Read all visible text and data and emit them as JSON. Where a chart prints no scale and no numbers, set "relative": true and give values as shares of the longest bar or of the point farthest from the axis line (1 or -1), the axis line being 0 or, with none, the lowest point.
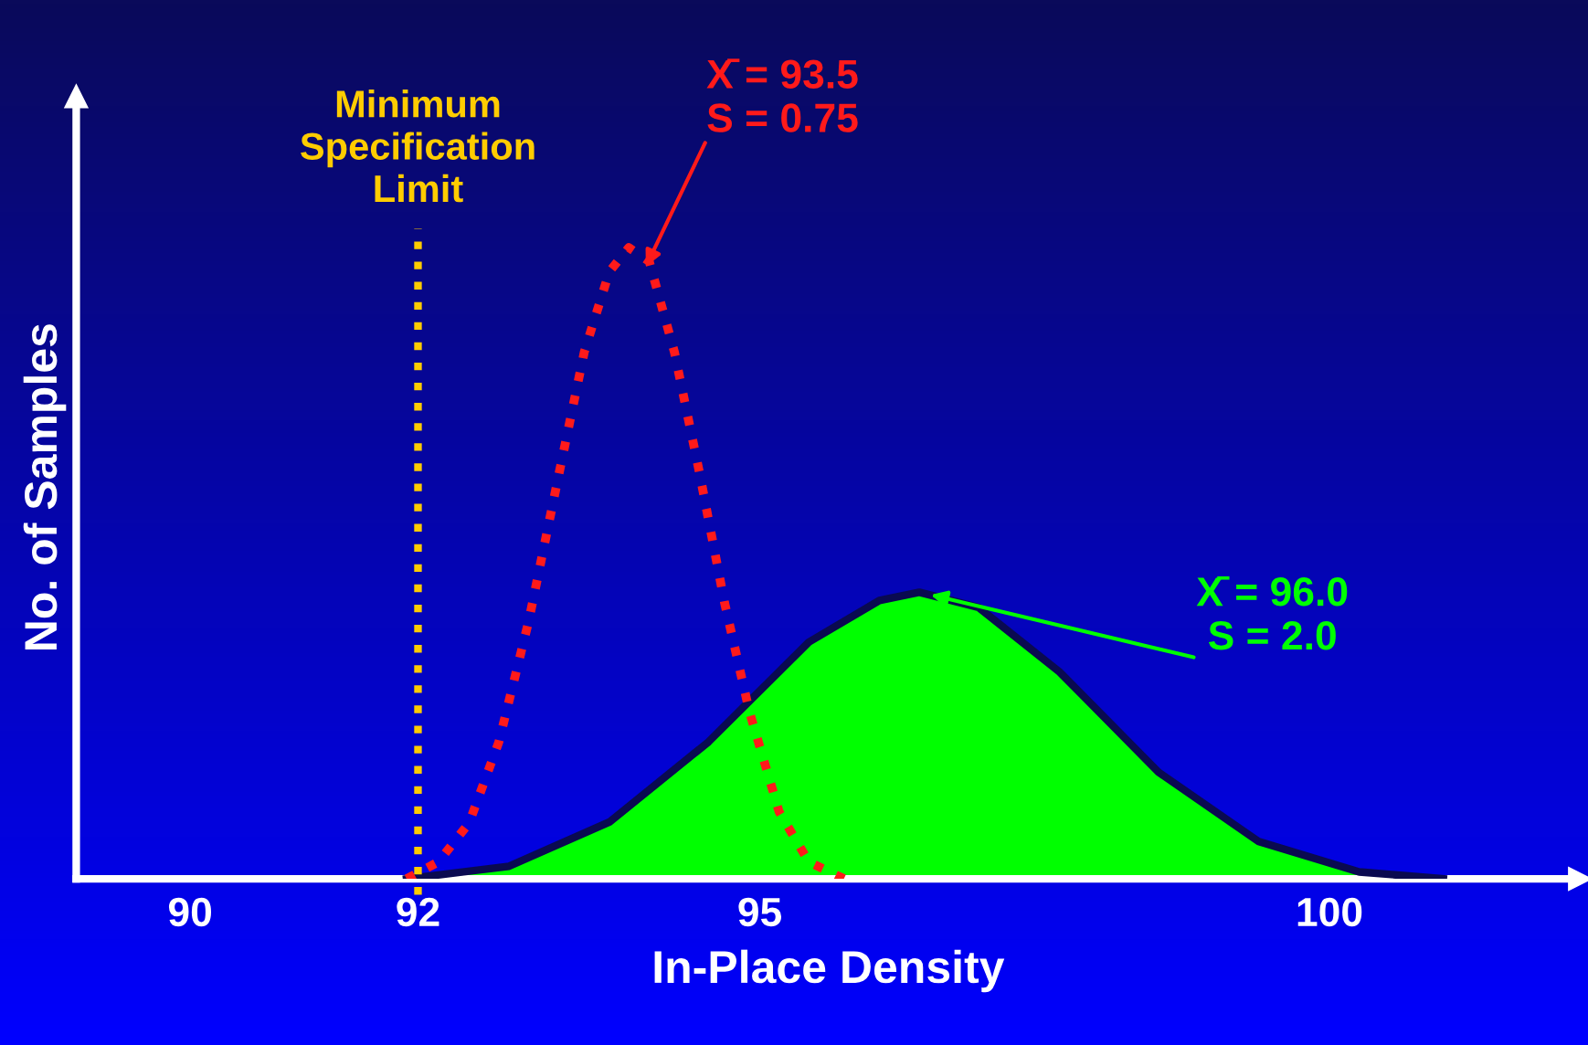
{
  "chart_data": {
    "type": "line",
    "relative": true,
    "xlabel": "In-Place Density",
    "ylabel": "No. of Samples",
    "xlim": [
      89,
      102.2
    ],
    "xticks": [
      90,
      92,
      95,
      100
    ],
    "tick_labels": "x",
    "grid": false,
    "legend": false,
    "series": [
      {
        "color": "#ff1a1a",
        "line_style": "dotted",
        "x": [
          91.9,
          92.18,
          92.45,
          92.71,
          92.97,
          93.24,
          93.46,
          93.68,
          93.85,
          94.03,
          94.25,
          94.47,
          94.69,
          94.91,
          95.17,
          95.43,
          95.74
        ],
        "values": [
          0,
          0.027,
          0.089,
          0.217,
          0.407,
          0.644,
          0.835,
          0.962,
          1.0,
          0.978,
          0.835,
          0.644,
          0.438,
          0.264,
          0.106,
          0.027,
          0
        ]
      },
      {
        "type": "area",
        "color": "#00ff00",
        "x": [
          91.9,
          92.8,
          93.68,
          94.55,
          95.43,
          96.05,
          96.4,
          96.92,
          97.63,
          98.5,
          99.38,
          100.26,
          101.0
        ],
        "values": [
          0,
          0.02,
          0.09,
          0.217,
          0.375,
          0.441,
          0.454,
          0.43,
          0.328,
          0.169,
          0.059,
          0.011,
          0
        ]
      }
    ],
    "ref_lines": [
      {
        "axis": "x",
        "value": 92,
        "label": "Minimum\nSpecification\nLimit",
        "color": "#ffcc00",
        "line_style": "dotted"
      }
    ],
    "annotations": [
      {
        "text": "X̄ = 93.5\nS = 0.75",
        "x": 94.0,
        "y": 0.97
      },
      {
        "text": "X̄ = 96.0\nS = 2.0",
        "x": 96.5,
        "y": 0.45
      }
    ]
  }
}
